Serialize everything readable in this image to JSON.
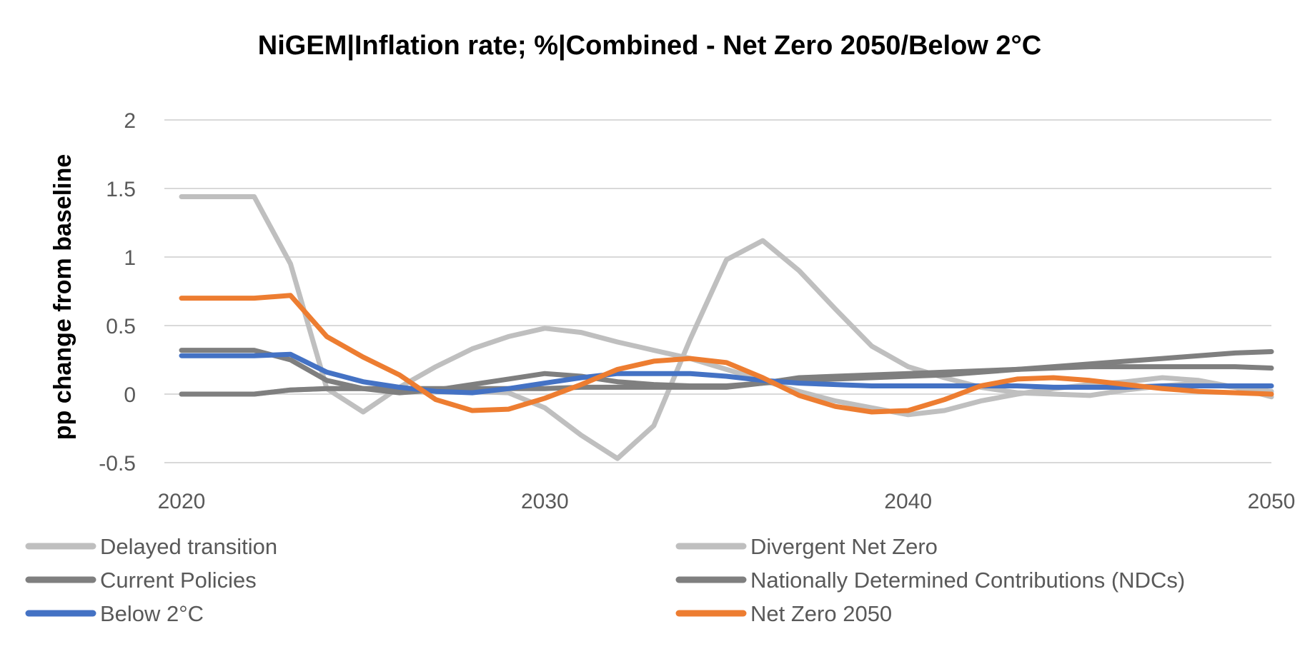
{
  "chart_data": {
    "type": "line",
    "title": "NiGEM|Inflation rate; %|Combined - Net Zero 2050/Below 2°C",
    "ylabel": "pp change from baseline",
    "xlabel": "",
    "ylim": [
      -0.5,
      2
    ],
    "xlim": [
      2020,
      2050
    ],
    "yticks": [
      "-0.5",
      "0",
      "0.5",
      "1",
      "1.5",
      "2"
    ],
    "yticks_values": [
      -0.5,
      0,
      0.5,
      1,
      1.5,
      2
    ],
    "xticks": [
      "2020",
      "2030",
      "2040",
      "2050"
    ],
    "xticks_values": [
      2020,
      2030,
      2040,
      2050
    ],
    "grid": true,
    "legend_position": "bottom",
    "x": [
      2020,
      2021,
      2022,
      2023,
      2024,
      2025,
      2026,
      2027,
      2028,
      2029,
      2030,
      2031,
      2032,
      2033,
      2034,
      2035,
      2036,
      2037,
      2038,
      2039,
      2040,
      2041,
      2042,
      2043,
      2044,
      2045,
      2046,
      2047,
      2048,
      2049,
      2050
    ],
    "series": [
      {
        "name": "Delayed transition",
        "color": "#bfbfbf",
        "values": [
          1.44,
          1.44,
          1.44,
          0.95,
          0.04,
          -0.13,
          0.05,
          0.2,
          0.33,
          0.42,
          0.48,
          0.45,
          0.38,
          0.32,
          0.26,
          0.18,
          0.1,
          0.02,
          -0.05,
          -0.1,
          -0.15,
          -0.12,
          -0.05,
          0.0,
          0.04,
          0.07,
          0.09,
          0.12,
          0.1,
          0.05,
          0.02
        ]
      },
      {
        "name": "Divergent Net Zero",
        "color": "#bfbfbf",
        "values": [
          0.0,
          0.0,
          0.0,
          0.03,
          0.04,
          0.04,
          0.03,
          0.02,
          0.02,
          0.01,
          -0.1,
          -0.3,
          -0.47,
          -0.23,
          0.4,
          0.98,
          1.12,
          0.9,
          0.62,
          0.35,
          0.2,
          0.12,
          0.05,
          0.01,
          0.0,
          -0.01,
          0.03,
          0.06,
          0.08,
          0.05,
          -0.02
        ]
      },
      {
        "name": "Current Policies",
        "color": "#7f7f7f",
        "values": [
          0.0,
          0.0,
          0.0,
          0.03,
          0.04,
          0.04,
          0.04,
          0.04,
          0.04,
          0.04,
          0.04,
          0.05,
          0.05,
          0.05,
          0.05,
          0.05,
          0.08,
          0.12,
          0.13,
          0.14,
          0.15,
          0.16,
          0.17,
          0.18,
          0.19,
          0.2,
          0.2,
          0.2,
          0.2,
          0.2,
          0.19
        ]
      },
      {
        "name": "Nationally Determined Contributions (NDCs)",
        "color": "#7f7f7f",
        "values": [
          0.32,
          0.32,
          0.32,
          0.25,
          0.1,
          0.04,
          0.01,
          0.03,
          0.07,
          0.11,
          0.15,
          0.13,
          0.09,
          0.07,
          0.06,
          0.06,
          0.08,
          0.1,
          0.11,
          0.12,
          0.13,
          0.14,
          0.16,
          0.18,
          0.2,
          0.22,
          0.24,
          0.26,
          0.28,
          0.3,
          0.31
        ]
      },
      {
        "name": "Below 2°C",
        "color": "#4472c4",
        "values": [
          0.28,
          0.28,
          0.28,
          0.29,
          0.16,
          0.09,
          0.05,
          0.02,
          0.01,
          0.04,
          0.08,
          0.12,
          0.15,
          0.15,
          0.15,
          0.13,
          0.1,
          0.08,
          0.07,
          0.06,
          0.06,
          0.06,
          0.06,
          0.06,
          0.05,
          0.05,
          0.05,
          0.06,
          0.06,
          0.06,
          0.06
        ]
      },
      {
        "name": "Net Zero 2050",
        "color": "#ed7d31",
        "values": [
          0.7,
          0.7,
          0.7,
          0.72,
          0.42,
          0.27,
          0.14,
          -0.04,
          -0.12,
          -0.11,
          -0.03,
          0.07,
          0.18,
          0.24,
          0.26,
          0.23,
          0.12,
          -0.01,
          -0.09,
          -0.13,
          -0.12,
          -0.04,
          0.06,
          0.11,
          0.12,
          0.1,
          0.07,
          0.04,
          0.02,
          0.01,
          0.0
        ]
      }
    ]
  }
}
